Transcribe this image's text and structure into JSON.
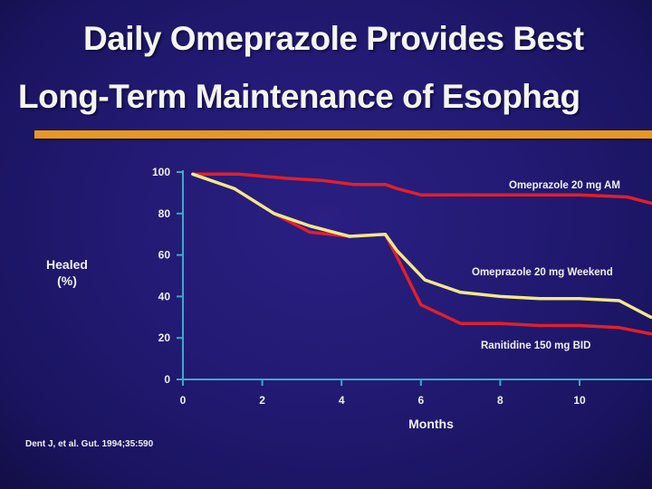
{
  "slide": {
    "title_line1": "Daily Omeprazole Provides Best",
    "title_line2": "Long-Term Maintenance of Esophag",
    "citation": "Dent J, et al.  Gut.  1994;35:590",
    "accent_color": "#e8981e",
    "background_color": "#221a73"
  },
  "chart_data": {
    "type": "line",
    "title": "",
    "xlabel": "Months",
    "ylabel": "Healed (%)",
    "ylabel_lines": [
      "Healed",
      "(%)"
    ],
    "xlim": [
      0,
      11.8
    ],
    "ylim": [
      0,
      100
    ],
    "xticks": [
      0,
      2,
      4,
      6,
      8,
      10
    ],
    "yticks": [
      0,
      20,
      40,
      60,
      80,
      100
    ],
    "series": [
      {
        "name": "Omeprazole 20 mg AM",
        "color": "#e0202a",
        "x": [
          0.25,
          1.4,
          2.6,
          3.5,
          4.3,
          5.1,
          5.4,
          6.0,
          8.0,
          10.0,
          11.2,
          11.8
        ],
        "y": [
          99,
          99,
          97,
          96,
          94,
          94,
          92,
          89,
          89,
          89,
          88,
          85
        ]
      },
      {
        "name": "Omeprazole 20 mg Weekend",
        "color": "#f2e88a",
        "x": [
          0.25,
          1.3,
          2.3,
          3.2,
          4.2,
          5.1,
          5.4,
          6.1,
          7.0,
          8.0,
          9.0,
          10.0,
          11.0,
          11.8
        ],
        "y": [
          99,
          92,
          80,
          74,
          69,
          70,
          62,
          48,
          42,
          40,
          39,
          39,
          38,
          30
        ]
      },
      {
        "name": "Ranitidine 150 mg BID",
        "color": "#e0202a",
        "x": [
          0.25,
          1.3,
          2.3,
          3.2,
          4.2,
          5.1,
          5.4,
          6.0,
          7.0,
          8.0,
          9.0,
          10.0,
          11.0,
          11.8
        ],
        "y": [
          99,
          92,
          80,
          71,
          69,
          70,
          59,
          36,
          27,
          27,
          26,
          26,
          25,
          22
        ]
      }
    ],
    "labels": [
      {
        "text": "Omeprazole 20 mg AM",
        "series": "Omeprazole 20 mg AM"
      },
      {
        "text": "Omeprazole 20 mg Weekend",
        "series": "Omeprazole 20 mg Weekend"
      },
      {
        "text": "Ranitidine 150 mg BID",
        "series": "Ranitidine 150 mg BID"
      }
    ]
  }
}
